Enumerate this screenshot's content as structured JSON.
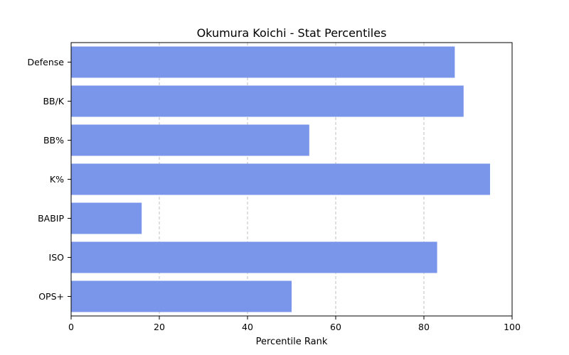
{
  "chart_data": {
    "type": "bar",
    "orientation": "horizontal",
    "title": "Okumura Koichi - Stat Percentiles",
    "xlabel": "Percentile Rank",
    "ylabel": "",
    "categories": [
      "Defense",
      "BB/K",
      "BB%",
      "K%",
      "BABIP",
      "ISO",
      "OPS+"
    ],
    "values": [
      87,
      89,
      54,
      95,
      16,
      83,
      50
    ],
    "xlim": [
      0,
      100
    ],
    "xticks": [
      0,
      20,
      40,
      60,
      80,
      100
    ],
    "grid": "x-dashed",
    "bar_color": "#7a96ea"
  }
}
